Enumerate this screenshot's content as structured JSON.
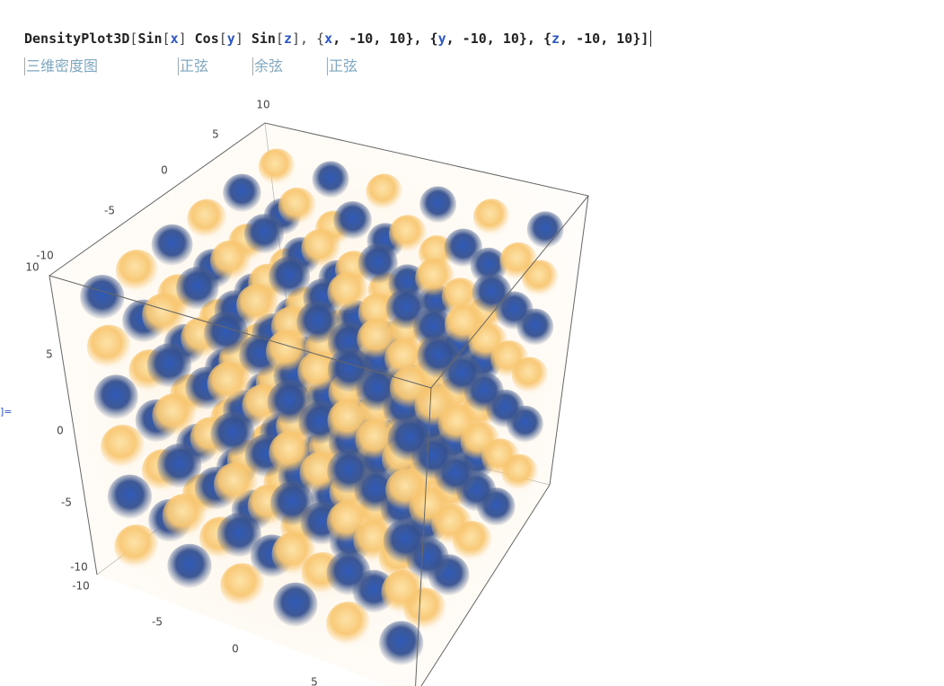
{
  "input": {
    "code_tokens": [
      "DensityPlot3D",
      "[",
      "Sin",
      "[",
      "x",
      "] ",
      "Cos",
      "[",
      "y",
      "] ",
      "Sin",
      "[",
      "z",
      "], {",
      "x",
      ", -10, 10}, {",
      "y",
      ", -10, 10}, {",
      "z",
      ", -10, 10}]"
    ],
    "annotations": [
      "三维密度图",
      "正弦",
      "余弦",
      "正弦"
    ]
  },
  "output_label": "]=",
  "plot": {
    "depth_axis_ticks": [
      "10",
      "5",
      "0",
      "-5",
      "-10"
    ],
    "vertical_axis_ticks": [
      "10",
      "5",
      "0",
      "-5",
      "-10"
    ],
    "bottom_axis_ticks": [
      "-10",
      "-5",
      "0",
      "5"
    ]
  }
}
